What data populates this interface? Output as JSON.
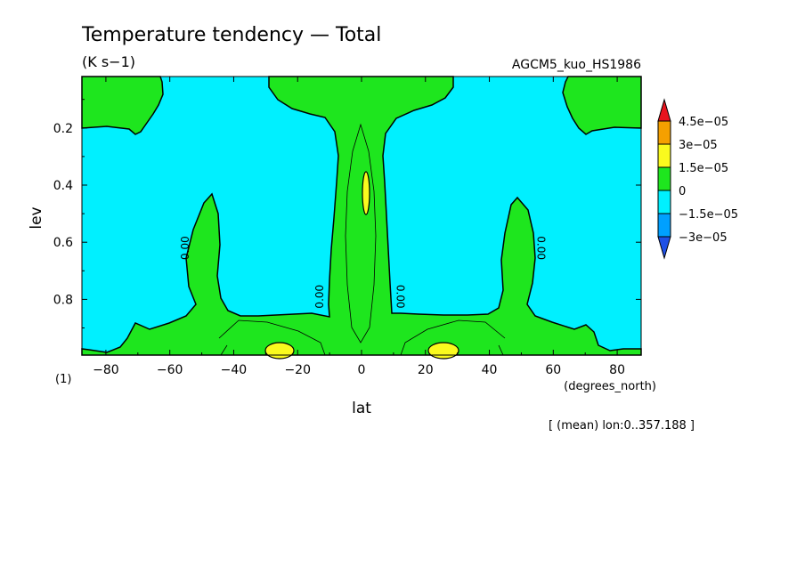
{
  "chart_data": {
    "type": "heatmap",
    "title": "Temperature tendency — Total",
    "units": "(K s−1)",
    "dataset": "AGCM5_kuo_HS1986",
    "xlabel": "lat",
    "x_units": "(degrees_north)",
    "ylabel": "lev",
    "y_units": "(1)",
    "footnote": "[ (mean) lon:0..357.188 ]",
    "xlim": [
      -87.5,
      87.5
    ],
    "ylim": [
      0.02,
      0.995
    ],
    "y_reversed": true,
    "x_ticks": [
      -80,
      -60,
      -40,
      -20,
      0,
      20,
      40,
      60,
      80
    ],
    "x_tick_labels": [
      "−80",
      "−60",
      "−40",
      "−20",
      "0",
      "20",
      "40",
      "60",
      "80"
    ],
    "y_ticks": [
      0.2,
      0.4,
      0.6,
      0.8
    ],
    "y_tick_labels": [
      "0.2",
      "0.4",
      "0.6",
      "0.8"
    ],
    "contour_labels": [
      {
        "text": "0.00",
        "lat": -54,
        "lev": 0.62
      },
      {
        "text": "0.00",
        "lat": -12,
        "lev": 0.79
      },
      {
        "text": "0.00",
        "lat": 11,
        "lev": 0.79
      },
      {
        "text": "0.00",
        "lat": 55,
        "lev": 0.62
      }
    ],
    "levels": [
      {
        "label": "4.5e−05",
        "color": "#e8141e"
      },
      {
        "label": "3e−05",
        "color": "#f5a000"
      },
      {
        "label": "1.5e−05",
        "color": "#fafa1e"
      },
      {
        "label": "0",
        "color": "#1ee61e"
      },
      {
        "label": "−1.5e−05",
        "color": "#00f0ff"
      },
      {
        "label": "−3e−05",
        "color": "#00a0ff"
      }
    ],
    "colorbar_end_colors": {
      "top": "#e8141e",
      "bottom": "#1e50e6"
    },
    "regions": {
      "negative_color": "#00f0ff",
      "zero_to_1_5e_05_color": "#1ee61e",
      "above_1_5e_05_color": "#fafa1e"
    },
    "green_lobes_lat": [
      -87.5,
      -72,
      -50,
      0,
      50,
      72,
      87.5
    ],
    "yellow_maxima": [
      {
        "lat": -27,
        "lev": 0.97
      },
      {
        "lat": 1,
        "lev": 0.4
      },
      {
        "lat": 26,
        "lev": 0.97
      }
    ]
  }
}
